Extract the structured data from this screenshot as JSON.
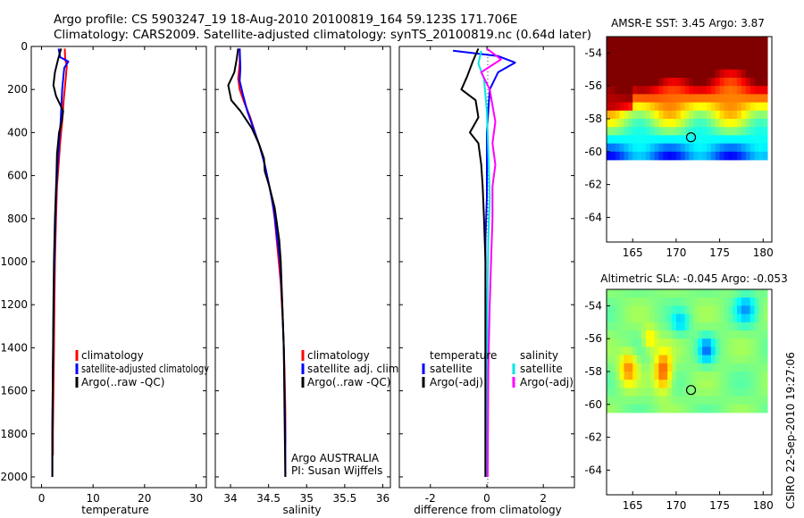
{
  "header": {
    "line1": "Argo profile: CS 5903247_19 18-Aug-2010 20100819_164 59.123S 171.706E",
    "line2": "Climatology: CARS2009. Satellite-adjusted climatology: synTS_20100819.nc (0.64d later)"
  },
  "side_label": "CSIRO 22-Sep-2010 19:27:06",
  "colors": {
    "climatology": "#ff0000",
    "satellite": "#0000ff",
    "argo": "#000000",
    "sal_satellite": "#00e5e5",
    "sal_argo": "#ff00ff"
  },
  "chart_data": [
    {
      "type": "line",
      "xlabel": "temperature",
      "xlim": [
        -2,
        32
      ],
      "ylim": [
        2050,
        0
      ],
      "xticks": [
        0,
        10,
        20,
        30
      ],
      "yticks": [
        0,
        200,
        400,
        600,
        800,
        1000,
        1200,
        1400,
        1600,
        1800,
        2000
      ],
      "legend": [
        "climatology",
        "satellite-adjusted climatology",
        "Argo(..raw -QC)"
      ],
      "series": [
        {
          "key": "climatology",
          "color": "#ff0000",
          "points": [
            [
              4.5,
              10
            ],
            [
              4.6,
              60
            ],
            [
              4.9,
              90
            ],
            [
              4.7,
              150
            ],
            [
              4.3,
              250
            ],
            [
              4.0,
              350
            ],
            [
              3.6,
              450
            ],
            [
              3.3,
              550
            ],
            [
              3.0,
              650
            ],
            [
              2.8,
              800
            ],
            [
              2.6,
              1000
            ],
            [
              2.5,
              1200
            ],
            [
              2.4,
              1400
            ],
            [
              2.3,
              1600
            ],
            [
              2.2,
              1800
            ],
            [
              2.2,
              1900
            ]
          ]
        },
        {
          "key": "satellite",
          "color": "#0000ff",
          "points": [
            [
              3.3,
              10
            ],
            [
              3.6,
              50
            ],
            [
              5.2,
              70
            ],
            [
              4.4,
              100
            ],
            [
              4.0,
              200
            ],
            [
              3.7,
              350
            ],
            [
              3.4,
              450
            ],
            [
              3.1,
              550
            ],
            [
              2.8,
              700
            ],
            [
              2.6,
              900
            ],
            [
              2.4,
              1100
            ],
            [
              2.3,
              1300
            ],
            [
              2.2,
              1500
            ],
            [
              2.1,
              1800
            ],
            [
              2.1,
              2000
            ]
          ]
        },
        {
          "key": "argo",
          "color": "#000000",
          "points": [
            [
              3.8,
              10
            ],
            [
              3.2,
              60
            ],
            [
              2.6,
              120
            ],
            [
              2.3,
              180
            ],
            [
              2.8,
              230
            ],
            [
              3.6,
              270
            ],
            [
              4.2,
              300
            ],
            [
              3.9,
              350
            ],
            [
              3.4,
              400
            ],
            [
              3.2,
              450
            ],
            [
              3.0,
              500
            ],
            [
              2.9,
              600
            ],
            [
              2.6,
              800
            ],
            [
              2.4,
              1000
            ],
            [
              2.3,
              1200
            ],
            [
              2.2,
              1500
            ],
            [
              2.1,
              1800
            ],
            [
              2.1,
              2000
            ]
          ]
        }
      ]
    },
    {
      "type": "line",
      "xlabel": "salinity",
      "xlim": [
        33.8,
        36.1
      ],
      "ylim": [
        2050,
        0
      ],
      "xticks": [
        34,
        34.5,
        35,
        35.5,
        36
      ],
      "xticklabels": [
        "34",
        "34.5",
        "35",
        "35.5",
        "36"
      ],
      "legend": [
        "climatology",
        "satellite adj. clim.",
        "Argo(..raw -QC)"
      ],
      "annotation": [
        "Argo AUSTRALIA",
        "PI: Susan Wijffels"
      ],
      "series": [
        {
          "key": "climatology",
          "color": "#ff0000",
          "points": [
            [
              34.12,
              10
            ],
            [
              34.12,
              80
            ],
            [
              34.1,
              150
            ],
            [
              34.12,
              200
            ],
            [
              34.18,
              260
            ],
            [
              34.26,
              330
            ],
            [
              34.34,
              420
            ],
            [
              34.42,
              500
            ],
            [
              34.48,
              600
            ],
            [
              34.54,
              700
            ],
            [
              34.58,
              800
            ],
            [
              34.62,
              950
            ],
            [
              34.66,
              1100
            ],
            [
              34.69,
              1300
            ],
            [
              34.71,
              1500
            ],
            [
              34.72,
              1700
            ],
            [
              34.72,
              1850
            ]
          ]
        },
        {
          "key": "satellite",
          "color": "#0000ff",
          "points": [
            [
              34.12,
              10
            ],
            [
              34.13,
              100
            ],
            [
              34.12,
              160
            ],
            [
              34.16,
              220
            ],
            [
              34.22,
              300
            ],
            [
              34.3,
              380
            ],
            [
              34.38,
              460
            ],
            [
              34.45,
              550
            ],
            [
              34.51,
              650
            ],
            [
              34.57,
              760
            ],
            [
              34.61,
              880
            ],
            [
              34.65,
              1000
            ],
            [
              34.68,
              1200
            ],
            [
              34.7,
              1400
            ],
            [
              34.71,
              1600
            ],
            [
              34.72,
              1800
            ],
            [
              34.72,
              2000
            ]
          ]
        },
        {
          "key": "argo",
          "color": "#000000",
          "points": [
            [
              34.1,
              10
            ],
            [
              34.08,
              60
            ],
            [
              34.05,
              120
            ],
            [
              33.97,
              180
            ],
            [
              34.01,
              250
            ],
            [
              34.13,
              300
            ],
            [
              34.28,
              380
            ],
            [
              34.37,
              450
            ],
            [
              34.44,
              520
            ],
            [
              34.45,
              580
            ],
            [
              34.51,
              650
            ],
            [
              34.58,
              750
            ],
            [
              34.6,
              800
            ],
            [
              34.64,
              900
            ],
            [
              34.66,
              1000
            ],
            [
              34.68,
              1200
            ],
            [
              34.7,
              1400
            ],
            [
              34.71,
              1700
            ],
            [
              34.72,
              2000
            ]
          ]
        }
      ]
    },
    {
      "type": "line",
      "xlabel": "difference from climatology",
      "xlim": [
        -3.1,
        3.1
      ],
      "ylim": [
        2050,
        0
      ],
      "xticks": [
        -2,
        0,
        2
      ],
      "legend_columns": [
        {
          "title": "temperature",
          "entries": [
            "satellite",
            "Argo(-adj)"
          ]
        },
        {
          "title": "salinity",
          "entries": [
            "satellite",
            "Argo(-adj)"
          ]
        }
      ],
      "series": [
        {
          "key": "temp_satellite",
          "color": "#0000ff",
          "points": [
            [
              -1.2,
              20
            ],
            [
              0.4,
              45
            ],
            [
              1.0,
              75
            ],
            [
              0.4,
              120
            ],
            [
              0.1,
              200
            ],
            [
              0.05,
              300
            ],
            [
              0.0,
              400
            ],
            [
              0.0,
              500
            ],
            [
              0.0,
              700
            ],
            [
              -0.05,
              900
            ],
            [
              -0.05,
              1100
            ],
            [
              -0.05,
              1400
            ],
            [
              -0.05,
              1700
            ],
            [
              -0.05,
              2000
            ]
          ]
        },
        {
          "key": "temp_argo",
          "color": "#000000",
          "points": [
            [
              -0.3,
              10
            ],
            [
              -0.5,
              70
            ],
            [
              -0.7,
              140
            ],
            [
              -0.9,
              200
            ],
            [
              -0.4,
              250
            ],
            [
              -0.3,
              330
            ],
            [
              -0.6,
              400
            ],
            [
              -0.3,
              450
            ],
            [
              -0.2,
              550
            ],
            [
              -0.15,
              650
            ],
            [
              -0.1,
              800
            ],
            [
              -0.05,
              1000
            ],
            [
              -0.05,
              1300
            ],
            [
              -0.05,
              1700
            ],
            [
              -0.05,
              2000
            ]
          ]
        },
        {
          "key": "sal_satellite",
          "color": "#00e5e5",
          "points": [
            [
              -0.2,
              20
            ],
            [
              -0.3,
              80
            ],
            [
              -0.1,
              150
            ],
            [
              0.0,
              300
            ],
            [
              0.05,
              500
            ],
            [
              0.1,
              700
            ],
            [
              0.05,
              900
            ],
            [
              0.02,
              1200
            ],
            [
              0.02,
              1600
            ],
            [
              0.02,
              2000
            ]
          ]
        },
        {
          "key": "sal_argo",
          "color": "#ff00ff",
          "points": [
            [
              0.0,
              10
            ],
            [
              0.5,
              60
            ],
            [
              -0.2,
              120
            ],
            [
              0.1,
              200
            ],
            [
              0.3,
              350
            ],
            [
              0.2,
              450
            ],
            [
              0.3,
              550
            ],
            [
              0.2,
              650
            ],
            [
              0.2,
              800
            ],
            [
              0.15,
              1000
            ],
            [
              0.1,
              1200
            ],
            [
              0.05,
              1500
            ],
            [
              0.03,
              2000
            ]
          ]
        }
      ]
    },
    {
      "type": "heatmap",
      "title": "AMSR-E SST: 3.45 Argo: 3.87",
      "xlim": [
        162,
        181
      ],
      "ylim": [
        -65.5,
        -53
      ],
      "xticks": [
        165,
        170,
        175,
        180
      ],
      "yticks": [
        -54,
        -56,
        -58,
        -60,
        -62,
        -64
      ],
      "data_extent": {
        "lon": [
          162,
          180.5
        ],
        "lat": [
          -60.2,
          -53
        ]
      },
      "marker": {
        "lon": 171.706,
        "lat": -59.123
      }
    },
    {
      "type": "heatmap",
      "title": "Altimetric SLA: -0.045 Argo: -0.053",
      "xlim": [
        162,
        181
      ],
      "ylim": [
        -65.5,
        -53
      ],
      "xticks": [
        165,
        170,
        175,
        180
      ],
      "yticks": [
        -54,
        -56,
        -58,
        -60,
        -62,
        -64
      ],
      "data_extent": {
        "lon": [
          162,
          180.5
        ],
        "lat": [
          -60.2,
          -53
        ]
      },
      "marker": {
        "lon": 171.706,
        "lat": -59.123
      }
    }
  ]
}
